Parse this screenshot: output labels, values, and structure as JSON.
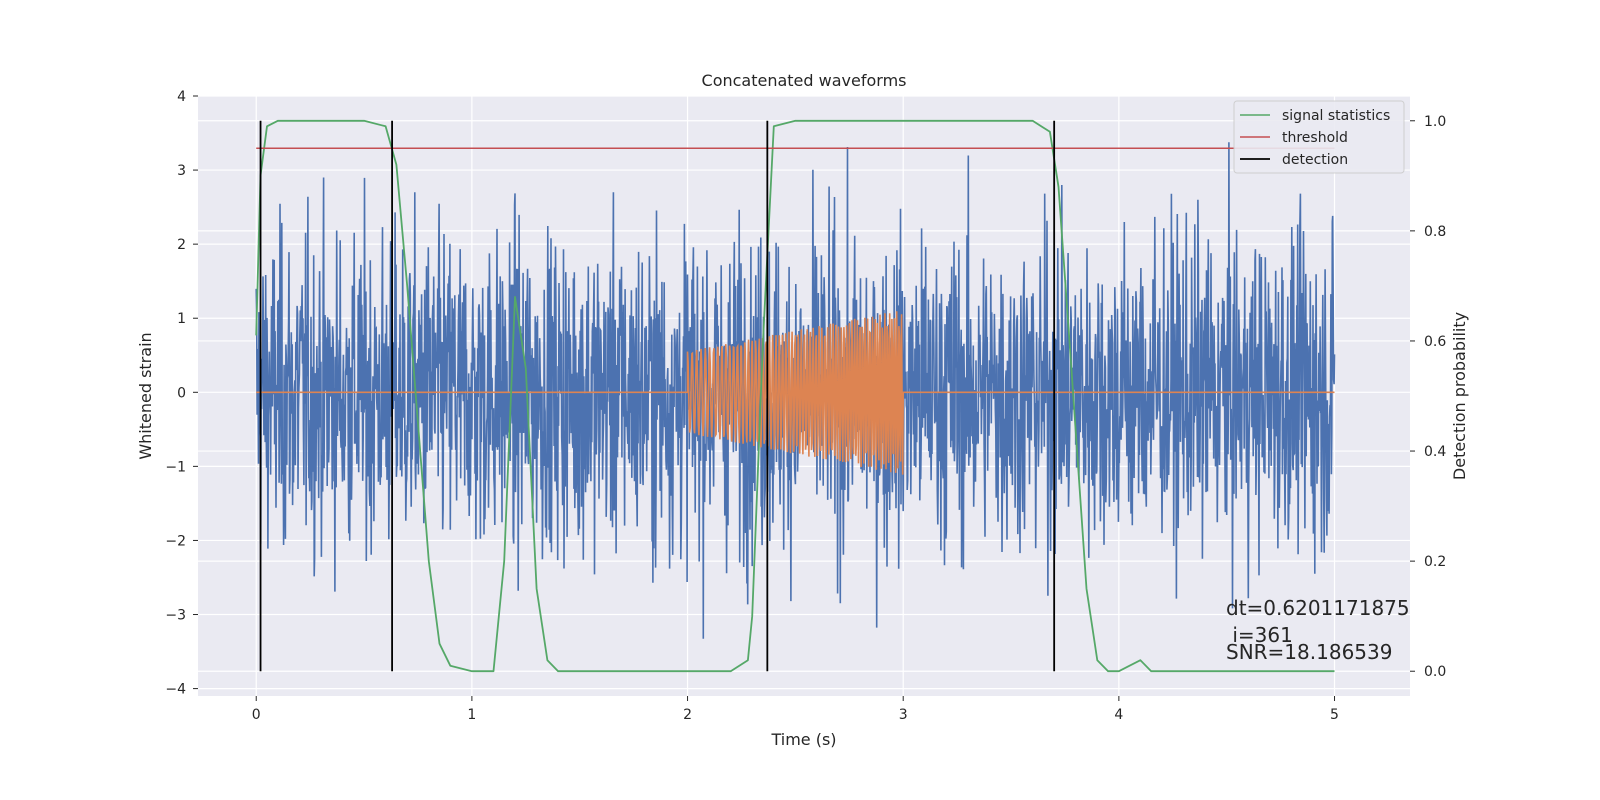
{
  "chart_data": {
    "type": "line",
    "title": "Concatenated waveforms",
    "xlabel": "Time (s)",
    "ylabel": "Whitened strain",
    "y2label": "Detection probability",
    "xlim": [
      -0.27,
      5.35
    ],
    "ylim": [
      -4.1,
      4.0
    ],
    "y2lim": [
      -0.045,
      1.045
    ],
    "xticks": [
      "0",
      "1",
      "2",
      "3",
      "4",
      "5"
    ],
    "yticks": [
      "−4",
      "−3",
      "−2",
      "−1",
      "0",
      "1",
      "2",
      "3",
      "4"
    ],
    "y2ticks": [
      "0.0",
      "0.2",
      "0.4",
      "0.6",
      "0.8",
      "1.0"
    ],
    "grid": true,
    "legend_position": "top-right",
    "legend": [
      "signal statistics",
      "threshold",
      "detection"
    ],
    "colors": {
      "strain": "#4c72b0",
      "injected": "#dd8452",
      "statistic": "#55a868",
      "threshold": "#c44e52",
      "detection": "#000000",
      "background": "#eaeaf2"
    },
    "strain_series": {
      "description_free": true,
      "x_start": 0,
      "x_end": 5,
      "amplitude_sd": 1.05,
      "peak_max": 3.68,
      "peak_min": -3.75
    },
    "injected_waveform": {
      "x_start": 2.0,
      "x_end": 3.0,
      "amplitude_start": 0.55,
      "amplitude_end": 1.12
    },
    "signal_statistics": {
      "x": [
        0.0,
        0.02,
        0.05,
        0.1,
        0.5,
        0.6,
        0.65,
        0.7,
        0.8,
        0.85,
        0.9,
        1.0,
        1.1,
        1.15,
        1.2,
        1.25,
        1.3,
        1.35,
        1.4,
        1.5,
        1.8,
        2.2,
        2.28,
        2.3,
        2.35,
        2.4,
        2.5,
        3.0,
        3.6,
        3.68,
        3.72,
        3.78,
        3.85,
        3.9,
        3.95,
        4.0,
        4.05,
        4.1,
        4.15,
        4.2,
        5.0
      ],
      "y": [
        0.61,
        0.9,
        0.99,
        1.0,
        1.0,
        0.99,
        0.92,
        0.7,
        0.2,
        0.05,
        0.01,
        0.0,
        0.0,
        0.2,
        0.68,
        0.55,
        0.15,
        0.02,
        0.0,
        0.0,
        0.0,
        0.0,
        0.02,
        0.1,
        0.6,
        0.99,
        1.0,
        1.0,
        1.0,
        0.98,
        0.88,
        0.55,
        0.15,
        0.02,
        0.0,
        0.0,
        0.01,
        0.02,
        0.0,
        0.0,
        0.0
      ]
    },
    "threshold": {
      "value": 0.95,
      "x": [
        0,
        5
      ]
    },
    "detections": [
      0.02,
      0.63,
      2.37,
      3.7
    ],
    "annotations": [
      "dt=0.6201171875",
      " i=361",
      "SNR=18.186539"
    ]
  }
}
